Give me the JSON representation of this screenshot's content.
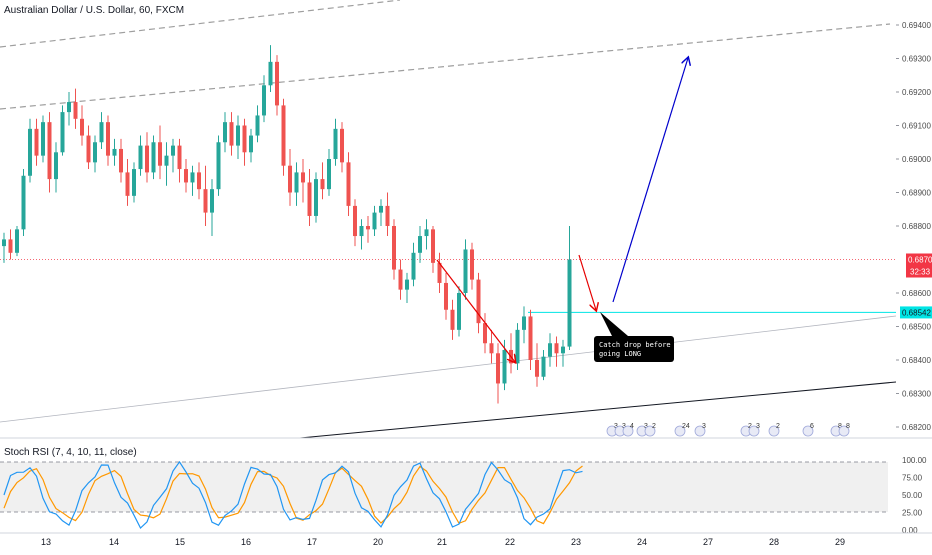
{
  "header": {
    "symbol_title": "Australian Dollar / U.S. Dollar, 60, FXCM"
  },
  "price_axis": {
    "labels": [
      "0.69400",
      "0.69300",
      "0.69200",
      "0.69100",
      "0.69000",
      "0.68900",
      "0.68800",
      "0.68600",
      "0.68500",
      "0.68400",
      "0.68300",
      "0.68200"
    ],
    "current_price_tag": "0.68700",
    "countdown_tag": "32:33",
    "target_price_tag": "0.68542"
  },
  "time_axis": {
    "labels": [
      "13",
      "14",
      "15",
      "16",
      "17",
      "20",
      "21",
      "22",
      "23",
      "24",
      "27",
      "28",
      "29"
    ]
  },
  "annotation": {
    "note_line1": "Catch drop before",
    "note_line2": "going LONG"
  },
  "indicator": {
    "title": "Stoch RSI (7, 4, 10, 11, close)",
    "axis_labels": [
      "100.00",
      "75.00",
      "50.00",
      "25.00",
      "0.00"
    ],
    "k_color": "#2196f3",
    "d_color": "#ff9800"
  },
  "events": {
    "labels": [
      "3",
      "3",
      "4",
      "3",
      "2",
      "24",
      "3",
      "2",
      "3",
      "2",
      "6",
      "8",
      "8"
    ]
  },
  "colors": {
    "up_candle": "#26a69a",
    "down_candle": "#ef5350",
    "support_line": "#131722",
    "channel_dashed": "#9e9e9e",
    "horizontal_level": "#00e5e5",
    "current_price": "#f23645",
    "target_arrow": "#0000cc",
    "drop_arrow": "#e60000"
  },
  "chart_data": {
    "type": "candlestick",
    "title": "Australian Dollar / U.S. Dollar, 60, FXCM",
    "symbol": "AUDUSD",
    "timeframe": "60",
    "x_ticks": [
      "13",
      "14",
      "15",
      "16",
      "17",
      "20",
      "21",
      "22",
      "23",
      "24",
      "27",
      "28",
      "29"
    ],
    "ylim": [
      0.6815,
      0.6945
    ],
    "y_ticks": [
      0.694,
      0.693,
      0.692,
      0.691,
      0.69,
      0.689,
      0.688,
      0.686,
      0.685,
      0.684,
      0.683,
      0.682
    ],
    "candles": [
      {
        "o": 0.6874,
        "h": 0.6878,
        "l": 0.6869,
        "c": 0.6876
      },
      {
        "o": 0.6876,
        "h": 0.6879,
        "l": 0.687,
        "c": 0.6872
      },
      {
        "o": 0.6872,
        "h": 0.688,
        "l": 0.6871,
        "c": 0.6879
      },
      {
        "o": 0.6879,
        "h": 0.6897,
        "l": 0.6877,
        "c": 0.6895
      },
      {
        "o": 0.6895,
        "h": 0.6912,
        "l": 0.6893,
        "c": 0.6909
      },
      {
        "o": 0.6909,
        "h": 0.6912,
        "l": 0.6898,
        "c": 0.6901
      },
      {
        "o": 0.6901,
        "h": 0.6913,
        "l": 0.6899,
        "c": 0.6911
      },
      {
        "o": 0.6911,
        "h": 0.6914,
        "l": 0.689,
        "c": 0.6894
      },
      {
        "o": 0.6894,
        "h": 0.6905,
        "l": 0.689,
        "c": 0.6902
      },
      {
        "o": 0.6902,
        "h": 0.6916,
        "l": 0.6901,
        "c": 0.6914
      },
      {
        "o": 0.6914,
        "h": 0.692,
        "l": 0.691,
        "c": 0.6917
      },
      {
        "o": 0.6917,
        "h": 0.6921,
        "l": 0.6909,
        "c": 0.6912
      },
      {
        "o": 0.6912,
        "h": 0.6916,
        "l": 0.6904,
        "c": 0.6907
      },
      {
        "o": 0.6907,
        "h": 0.691,
        "l": 0.6897,
        "c": 0.6899
      },
      {
        "o": 0.6899,
        "h": 0.6907,
        "l": 0.6896,
        "c": 0.6905
      },
      {
        "o": 0.6905,
        "h": 0.6914,
        "l": 0.6903,
        "c": 0.6911
      },
      {
        "o": 0.6911,
        "h": 0.6913,
        "l": 0.6898,
        "c": 0.6901
      },
      {
        "o": 0.6901,
        "h": 0.6906,
        "l": 0.6898,
        "c": 0.6903
      },
      {
        "o": 0.6903,
        "h": 0.6906,
        "l": 0.6893,
        "c": 0.6896
      },
      {
        "o": 0.6896,
        "h": 0.69,
        "l": 0.6886,
        "c": 0.6889
      },
      {
        "o": 0.6889,
        "h": 0.6899,
        "l": 0.6887,
        "c": 0.6897
      },
      {
        "o": 0.6897,
        "h": 0.6907,
        "l": 0.6895,
        "c": 0.6904
      },
      {
        "o": 0.6904,
        "h": 0.6908,
        "l": 0.6893,
        "c": 0.6896
      },
      {
        "o": 0.6896,
        "h": 0.6907,
        "l": 0.6894,
        "c": 0.6905
      },
      {
        "o": 0.6905,
        "h": 0.691,
        "l": 0.6894,
        "c": 0.6898
      },
      {
        "o": 0.6898,
        "h": 0.6905,
        "l": 0.6892,
        "c": 0.6901
      },
      {
        "o": 0.6901,
        "h": 0.6906,
        "l": 0.6896,
        "c": 0.6904
      },
      {
        "o": 0.6904,
        "h": 0.6906,
        "l": 0.6893,
        "c": 0.6897
      },
      {
        "o": 0.6897,
        "h": 0.69,
        "l": 0.689,
        "c": 0.6893
      },
      {
        "o": 0.6893,
        "h": 0.6898,
        "l": 0.6889,
        "c": 0.6896
      },
      {
        "o": 0.6896,
        "h": 0.6899,
        "l": 0.6888,
        "c": 0.6891
      },
      {
        "o": 0.6891,
        "h": 0.6898,
        "l": 0.688,
        "c": 0.6884
      },
      {
        "o": 0.6884,
        "h": 0.6894,
        "l": 0.6877,
        "c": 0.6891
      },
      {
        "o": 0.6891,
        "h": 0.6907,
        "l": 0.6889,
        "c": 0.6905
      },
      {
        "o": 0.6905,
        "h": 0.6914,
        "l": 0.6902,
        "c": 0.6911
      },
      {
        "o": 0.6911,
        "h": 0.6914,
        "l": 0.6901,
        "c": 0.6904
      },
      {
        "o": 0.6904,
        "h": 0.6913,
        "l": 0.69,
        "c": 0.691
      },
      {
        "o": 0.691,
        "h": 0.6912,
        "l": 0.6898,
        "c": 0.6902
      },
      {
        "o": 0.6902,
        "h": 0.6909,
        "l": 0.6899,
        "c": 0.6907
      },
      {
        "o": 0.6907,
        "h": 0.6916,
        "l": 0.6905,
        "c": 0.6913
      },
      {
        "o": 0.6913,
        "h": 0.6925,
        "l": 0.6911,
        "c": 0.6922
      },
      {
        "o": 0.6922,
        "h": 0.6934,
        "l": 0.692,
        "c": 0.6929
      },
      {
        "o": 0.6929,
        "h": 0.6931,
        "l": 0.6913,
        "c": 0.6916
      },
      {
        "o": 0.6916,
        "h": 0.6918,
        "l": 0.6895,
        "c": 0.6898
      },
      {
        "o": 0.6898,
        "h": 0.6903,
        "l": 0.6886,
        "c": 0.689
      },
      {
        "o": 0.689,
        "h": 0.6899,
        "l": 0.6886,
        "c": 0.6896
      },
      {
        "o": 0.6896,
        "h": 0.69,
        "l": 0.6887,
        "c": 0.6893
      },
      {
        "o": 0.6893,
        "h": 0.6897,
        "l": 0.688,
        "c": 0.6883
      },
      {
        "o": 0.6883,
        "h": 0.6896,
        "l": 0.6881,
        "c": 0.6894
      },
      {
        "o": 0.6894,
        "h": 0.6899,
        "l": 0.6888,
        "c": 0.6891
      },
      {
        "o": 0.6891,
        "h": 0.6903,
        "l": 0.6889,
        "c": 0.69
      },
      {
        "o": 0.69,
        "h": 0.6912,
        "l": 0.6898,
        "c": 0.6909
      },
      {
        "o": 0.6909,
        "h": 0.6911,
        "l": 0.6896,
        "c": 0.6899
      },
      {
        "o": 0.6899,
        "h": 0.6902,
        "l": 0.6883,
        "c": 0.6886
      },
      {
        "o": 0.6886,
        "h": 0.6888,
        "l": 0.6874,
        "c": 0.6877
      },
      {
        "o": 0.6877,
        "h": 0.6882,
        "l": 0.6873,
        "c": 0.688
      },
      {
        "o": 0.688,
        "h": 0.6883,
        "l": 0.6875,
        "c": 0.6879
      },
      {
        "o": 0.6879,
        "h": 0.6886,
        "l": 0.6877,
        "c": 0.6884
      },
      {
        "o": 0.6884,
        "h": 0.6888,
        "l": 0.688,
        "c": 0.6886
      },
      {
        "o": 0.6886,
        "h": 0.689,
        "l": 0.6877,
        "c": 0.688
      },
      {
        "o": 0.688,
        "h": 0.6882,
        "l": 0.6864,
        "c": 0.6867
      },
      {
        "o": 0.6867,
        "h": 0.687,
        "l": 0.6858,
        "c": 0.6861
      },
      {
        "o": 0.6861,
        "h": 0.6866,
        "l": 0.6857,
        "c": 0.6864
      },
      {
        "o": 0.6864,
        "h": 0.6875,
        "l": 0.6862,
        "c": 0.6872
      },
      {
        "o": 0.6872,
        "h": 0.688,
        "l": 0.6869,
        "c": 0.6877
      },
      {
        "o": 0.6877,
        "h": 0.6882,
        "l": 0.6873,
        "c": 0.6879
      },
      {
        "o": 0.6879,
        "h": 0.688,
        "l": 0.6866,
        "c": 0.6869
      },
      {
        "o": 0.6869,
        "h": 0.6872,
        "l": 0.686,
        "c": 0.6863
      },
      {
        "o": 0.6863,
        "h": 0.6866,
        "l": 0.6852,
        "c": 0.6855
      },
      {
        "o": 0.6855,
        "h": 0.6858,
        "l": 0.6846,
        "c": 0.6849
      },
      {
        "o": 0.6849,
        "h": 0.6862,
        "l": 0.6847,
        "c": 0.686
      },
      {
        "o": 0.686,
        "h": 0.6876,
        "l": 0.6858,
        "c": 0.6873
      },
      {
        "o": 0.6873,
        "h": 0.6875,
        "l": 0.6861,
        "c": 0.6864
      },
      {
        "o": 0.6864,
        "h": 0.6866,
        "l": 0.6848,
        "c": 0.6851
      },
      {
        "o": 0.6851,
        "h": 0.6854,
        "l": 0.6842,
        "c": 0.6845
      },
      {
        "o": 0.6845,
        "h": 0.6849,
        "l": 0.6839,
        "c": 0.6842
      },
      {
        "o": 0.6842,
        "h": 0.6845,
        "l": 0.6827,
        "c": 0.6833
      },
      {
        "o": 0.6833,
        "h": 0.6846,
        "l": 0.6831,
        "c": 0.6843
      },
      {
        "o": 0.6843,
        "h": 0.6848,
        "l": 0.6836,
        "c": 0.6839
      },
      {
        "o": 0.6839,
        "h": 0.6851,
        "l": 0.6837,
        "c": 0.6849
      },
      {
        "o": 0.6849,
        "h": 0.6856,
        "l": 0.6845,
        "c": 0.6853
      },
      {
        "o": 0.6853,
        "h": 0.6855,
        "l": 0.6837,
        "c": 0.684
      },
      {
        "o": 0.684,
        "h": 0.6845,
        "l": 0.6832,
        "c": 0.6835
      },
      {
        "o": 0.6835,
        "h": 0.6843,
        "l": 0.6834,
        "c": 0.6841
      },
      {
        "o": 0.6841,
        "h": 0.6848,
        "l": 0.6838,
        "c": 0.6845
      },
      {
        "o": 0.6845,
        "h": 0.6847,
        "l": 0.6838,
        "c": 0.6842
      },
      {
        "o": 0.6842,
        "h": 0.6846,
        "l": 0.6838,
        "c": 0.6844
      },
      {
        "o": 0.6844,
        "h": 0.688,
        "l": 0.6843,
        "c": 0.687
      }
    ],
    "channel_upper_dashed": [
      {
        "x": 0,
        "y": 0.6921
      },
      {
        "x": 178,
        "y": 0.6946
      }
    ],
    "channel_upper_dashed_2": [
      {
        "x": 0,
        "y": 0.6935
      },
      {
        "x": 178,
        "y": 0.6967
      }
    ],
    "support_line": [
      {
        "x": 0,
        "y": 0.6822
      },
      {
        "x": 178,
        "y": 0.6814
      }
    ],
    "lower_trend": [
      {
        "x": 0,
        "y": 0.6822
      },
      {
        "x": 178,
        "y": 0.6834
      }
    ],
    "horizontal_level": 0.68542,
    "current_price": 0.687
  }
}
